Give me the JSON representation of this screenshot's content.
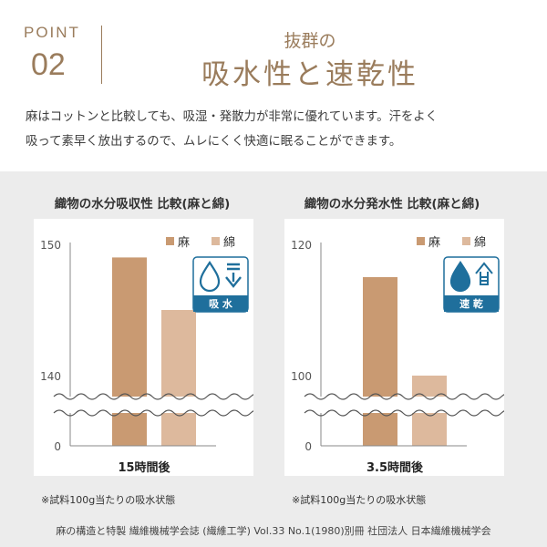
{
  "header": {
    "point_label": "POINT",
    "point_number": "02",
    "subtitle": "抜群の",
    "title": "吸水性と速乾性"
  },
  "description": {
    "line1": "麻はコットンと比較しても、吸湿・発散力が非常に優れています。汗をよく",
    "line2": "吸って素早く放出するので、ムレにくく快適に眠ることができます。"
  },
  "chart_data": [
    {
      "type": "bar",
      "title": "織物の水分吸収性 比較(麻と綿)",
      "categories": [
        "15時間後"
      ],
      "series": [
        {
          "name": "麻",
          "values": [
            149
          ],
          "color": "#c99a72"
        },
        {
          "name": "綿",
          "values": [
            145
          ],
          "color": "#ddb99d"
        }
      ],
      "xlabel": "15時間後",
      "ylabel": "",
      "yticks": [
        "150",
        "140",
        "0"
      ],
      "ylim": [
        0,
        150
      ],
      "axis_break": true,
      "badge_label": "吸 水",
      "badge_icon": "water-drop-down-arrow-icon",
      "note": "※試料100g当たりの吸水状態"
    },
    {
      "type": "bar",
      "title": "織物の水分発水性 比較(麻と綿)",
      "categories": [
        "3.5時間後"
      ],
      "series": [
        {
          "name": "麻",
          "values": [
            115
          ],
          "color": "#c99a72"
        },
        {
          "name": "綿",
          "values": [
            100
          ],
          "color": "#ddb99d"
        }
      ],
      "xlabel": "3.5時間後",
      "ylabel": "",
      "yticks": [
        "120",
        "100",
        "0"
      ],
      "ylim": [
        0,
        120
      ],
      "axis_break": true,
      "badge_label": "速 乾",
      "badge_icon": "water-drop-up-arrow-icon",
      "note": "※試料100g当たりの吸水状態"
    }
  ],
  "footer": {
    "source": "麻の構造と特製 繊維機械学会誌 (繊維工学) Vol.33 No.1(1980)別冊 社団法人 日本繊維機械学会"
  },
  "colors": {
    "accent": "#9a7c5c",
    "badge_blue": "#1f6f9c",
    "bar_asa": "#c99a72",
    "bar_men": "#ddb99d",
    "background_gray": "#ececec"
  }
}
